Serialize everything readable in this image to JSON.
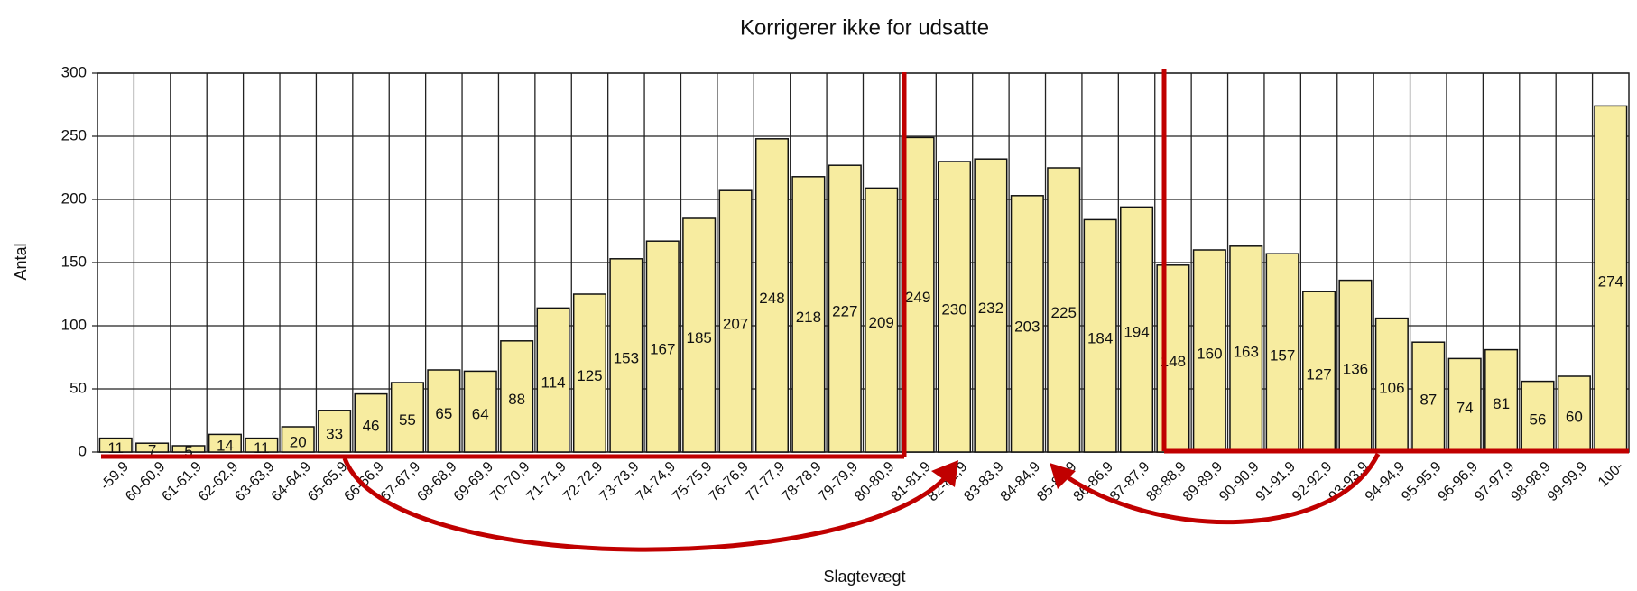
{
  "chart_data": {
    "type": "bar",
    "title": "Korrigerer ikke for udsatte",
    "x_label": "Slagtevægt",
    "y_label": "Antal",
    "categories": [
      "-59,9",
      "60-60,9",
      "61-61,9",
      "62-62,9",
      "63-63,9",
      "64-64,9",
      "65-65,9",
      "66-66,9",
      "67-67,9",
      "68-68,9",
      "69-69,9",
      "70-70,9",
      "71-71,9",
      "72-72,9",
      "73-73,9",
      "74-74,9",
      "75-75,9",
      "76-76,9",
      "77-77,9",
      "78-78,9",
      "79-79,9",
      "80-80,9",
      "81-81,9",
      "82-82,9",
      "83-83,9",
      "84-84,9",
      "85-85,9",
      "86-86,9",
      "87-87,9",
      "88-88,9",
      "89-89,9",
      "90-90,9",
      "91-91,9",
      "92-92,9",
      "93-93,9",
      "94-94,9",
      "95-95,9",
      "96-96,9",
      "97-97,9",
      "98-98,9",
      "99-99,9",
      "100-"
    ],
    "values": [
      11,
      7,
      5,
      14,
      11,
      20,
      33,
      46,
      55,
      65,
      64,
      88,
      114,
      125,
      153,
      167,
      185,
      207,
      248,
      218,
      227,
      209,
      249,
      230,
      232,
      203,
      225,
      184,
      194,
      148,
      160,
      163,
      157,
      127,
      136,
      106,
      87,
      74,
      81,
      56,
      60,
      274
    ],
    "color": "#f7eca0",
    "ylim": [
      0,
      300
    ],
    "yticks": [
      0,
      50,
      100,
      150,
      200,
      250,
      300
    ],
    "grid": true
  }
}
